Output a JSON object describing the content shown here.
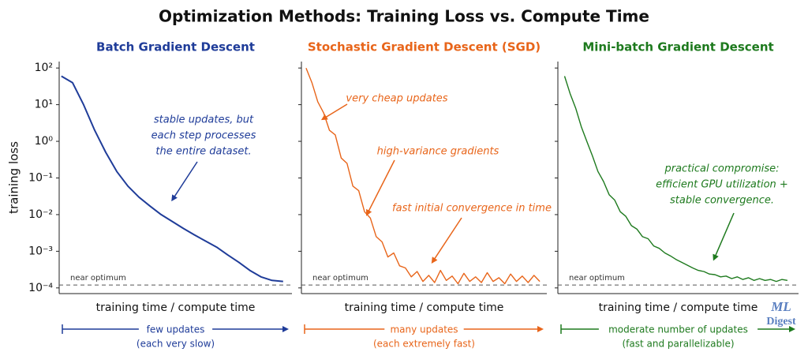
{
  "title": "Optimization Methods: Training Loss vs. Compute Time",
  "logo": [
    "ML",
    "Digest"
  ],
  "chart_data": [
    {
      "type": "line",
      "title": "Batch Gradient Descent",
      "xlabel": "training time / compute time",
      "ylabel": "training loss",
      "log_y": true,
      "ylim": [
        7e-05,
        150
      ],
      "xlim": [
        -0.1,
        10.4
      ],
      "yticks": [
        {
          "value": 100,
          "label": "10²"
        },
        {
          "value": 10,
          "label": "10¹"
        },
        {
          "value": 1,
          "label": "10⁰"
        },
        {
          "value": 0.1,
          "label": "10⁻¹"
        },
        {
          "value": 0.01,
          "label": "10⁻²"
        },
        {
          "value": 0.001,
          "label": "10⁻³"
        },
        {
          "value": 0.0001,
          "label": "10⁻⁴"
        }
      ],
      "x": [
        0,
        0.5,
        1,
        1.5,
        2,
        2.5,
        3,
        3.5,
        4,
        4.5,
        5,
        5.5,
        6,
        6.5,
        7,
        7.5,
        8,
        8.5,
        9,
        9.5,
        10
      ],
      "series": [
        {
          "color": "#1f3c99",
          "values": [
            60,
            40,
            10,
            2,
            0.5,
            0.15,
            0.06,
            0.03,
            0.017,
            0.01,
            0.0065,
            0.0042,
            0.0028,
            0.0019,
            0.0013,
            0.0008,
            0.0005,
            0.0003,
            0.0002,
            0.00016,
            0.00015
          ]
        }
      ],
      "reference_line": {
        "value": 0.00012,
        "label": "near optimum"
      },
      "annotations": [
        {
          "text": [
            "stable updates, but",
            "each step processes",
            "the entire dataset."
          ],
          "x": 5,
          "y": 0.025
        }
      ],
      "footer": [
        "few updates",
        "(each very slow)"
      ]
    },
    {
      "type": "line",
      "title": "Stochastic Gradient Descent (SGD)",
      "xlabel": "training time / compute time",
      "log_y": true,
      "ylim": [
        7e-05,
        150
      ],
      "xlim": [
        -0.2,
        10.3
      ],
      "x": [
        0,
        0.25,
        0.5,
        0.75,
        1,
        1.25,
        1.5,
        1.75,
        2,
        2.25,
        2.5,
        2.75,
        3,
        3.25,
        3.5,
        3.75,
        4,
        4.25,
        4.5,
        4.75,
        5,
        5.25,
        5.5,
        5.75,
        6,
        6.25,
        6.5,
        6.75,
        7,
        7.25,
        7.5,
        7.75,
        8,
        8.25,
        8.5,
        8.75,
        9,
        9.25,
        9.5,
        9.75,
        10
      ],
      "series": [
        {
          "color": "#e8651a",
          "values": [
            100,
            40,
            12,
            6,
            2,
            1.5,
            0.35,
            0.25,
            0.06,
            0.045,
            0.012,
            0.008,
            0.0025,
            0.0018,
            0.0007,
            0.0009,
            0.0004,
            0.00035,
            0.0002,
            0.00028,
            0.00015,
            0.00022,
            0.00014,
            0.0003,
            0.00016,
            0.00021,
            0.00013,
            0.00025,
            0.00015,
            0.0002,
            0.00014,
            0.00026,
            0.00015,
            0.00019,
            0.00013,
            0.00024,
            0.00015,
            0.00021,
            0.00014,
            0.00022,
            0.00015
          ]
        }
      ],
      "reference_line": {
        "value": 0.00012,
        "label": "near optimum"
      },
      "annotations": [
        {
          "text": [
            "very cheap updates"
          ],
          "x": 0.7,
          "y": 4
        },
        {
          "text": [
            "high-variance gradients"
          ],
          "x": 2.6,
          "y": 0.01
        },
        {
          "text": [
            "fast initial convergence in time"
          ],
          "x": 5.4,
          "y": 0.0005
        }
      ],
      "footer": [
        "many updates",
        "(each extremely fast)"
      ]
    },
    {
      "type": "line",
      "title": "Mini-batch Gradient Descent",
      "xlabel": "training time / compute time",
      "log_y": true,
      "ylim": [
        7e-05,
        150
      ],
      "xlim": [
        -0.3,
        10.5
      ],
      "x": [
        0,
        0.25,
        0.5,
        0.75,
        1,
        1.25,
        1.5,
        1.75,
        2,
        2.25,
        2.5,
        2.75,
        3,
        3.25,
        3.5,
        3.75,
        4,
        4.25,
        4.5,
        4.75,
        5,
        5.25,
        5.5,
        5.75,
        6,
        6.25,
        6.5,
        6.75,
        7,
        7.25,
        7.5,
        7.75,
        8,
        8.25,
        8.5,
        8.75,
        9,
        9.25,
        9.5,
        9.75,
        10
      ],
      "series": [
        {
          "color": "#1e7a1e",
          "values": [
            60,
            20,
            8,
            2.5,
            1,
            0.4,
            0.15,
            0.08,
            0.035,
            0.025,
            0.012,
            0.009,
            0.005,
            0.004,
            0.0025,
            0.0022,
            0.0014,
            0.0012,
            0.0009,
            0.00075,
            0.0006,
            0.0005,
            0.00042,
            0.00035,
            0.0003,
            0.00028,
            0.00024,
            0.00023,
            0.0002,
            0.00021,
            0.00018,
            0.0002,
            0.00017,
            0.00019,
            0.00016,
            0.00018,
            0.00016,
            0.00017,
            0.00015,
            0.00017,
            0.00016
          ]
        }
      ],
      "reference_line": {
        "value": 0.00012,
        "label": "near optimum"
      },
      "annotations": [
        {
          "text": [
            "practical compromise:",
            "efficient GPU utilization +",
            "stable convergence."
          ],
          "x": 6.7,
          "y": 0.0006
        }
      ],
      "footer": [
        "moderate number of updates",
        "(fast and parallelizable)"
      ]
    }
  ]
}
